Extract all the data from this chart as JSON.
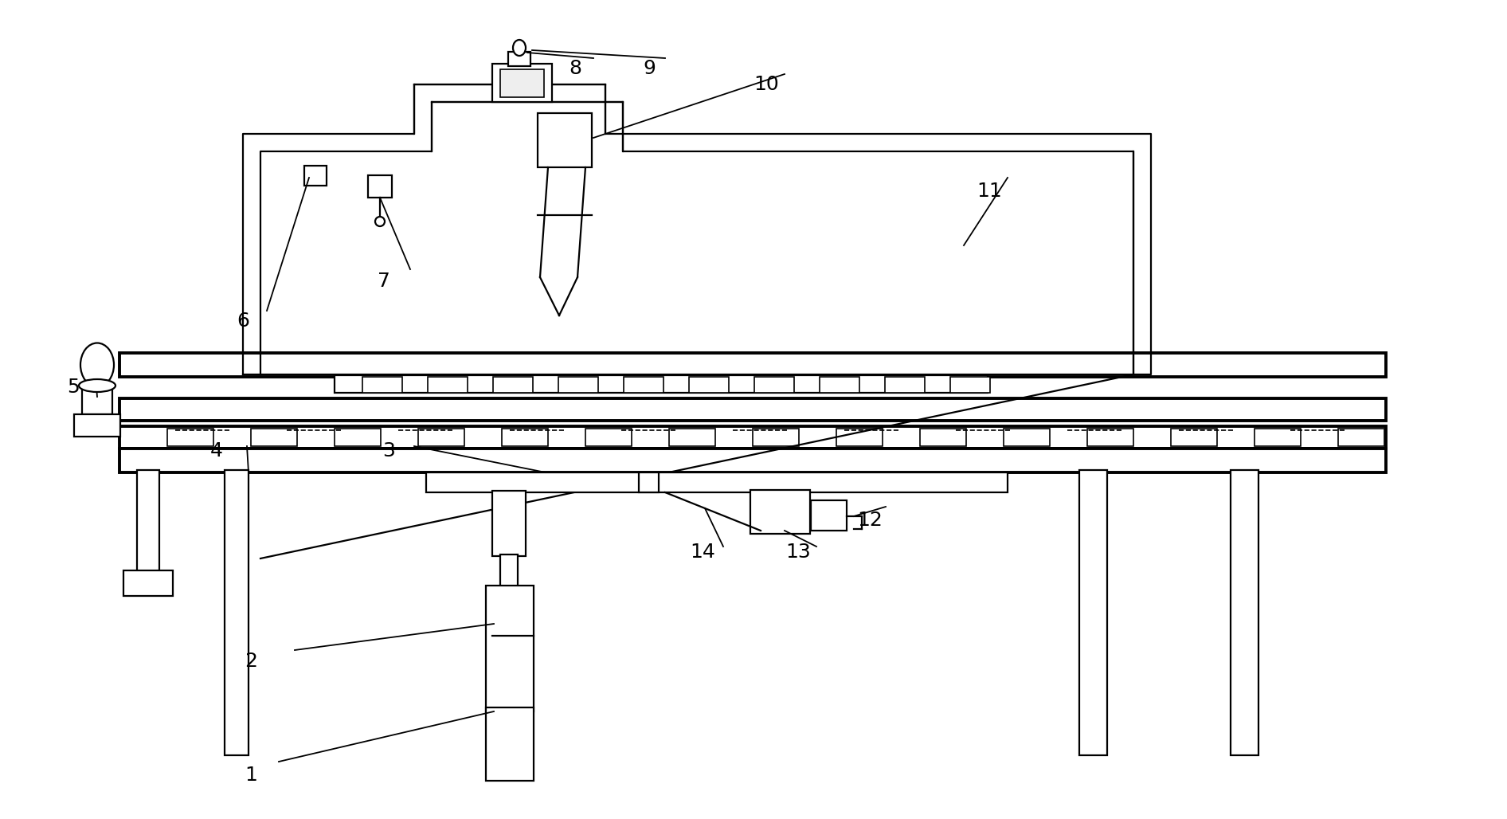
{
  "bg_color": "#ffffff",
  "lc": "#000000",
  "lw": 1.6,
  "tlw": 2.8,
  "fs": 18,
  "fig_w": 18.92,
  "fig_h": 10.28
}
